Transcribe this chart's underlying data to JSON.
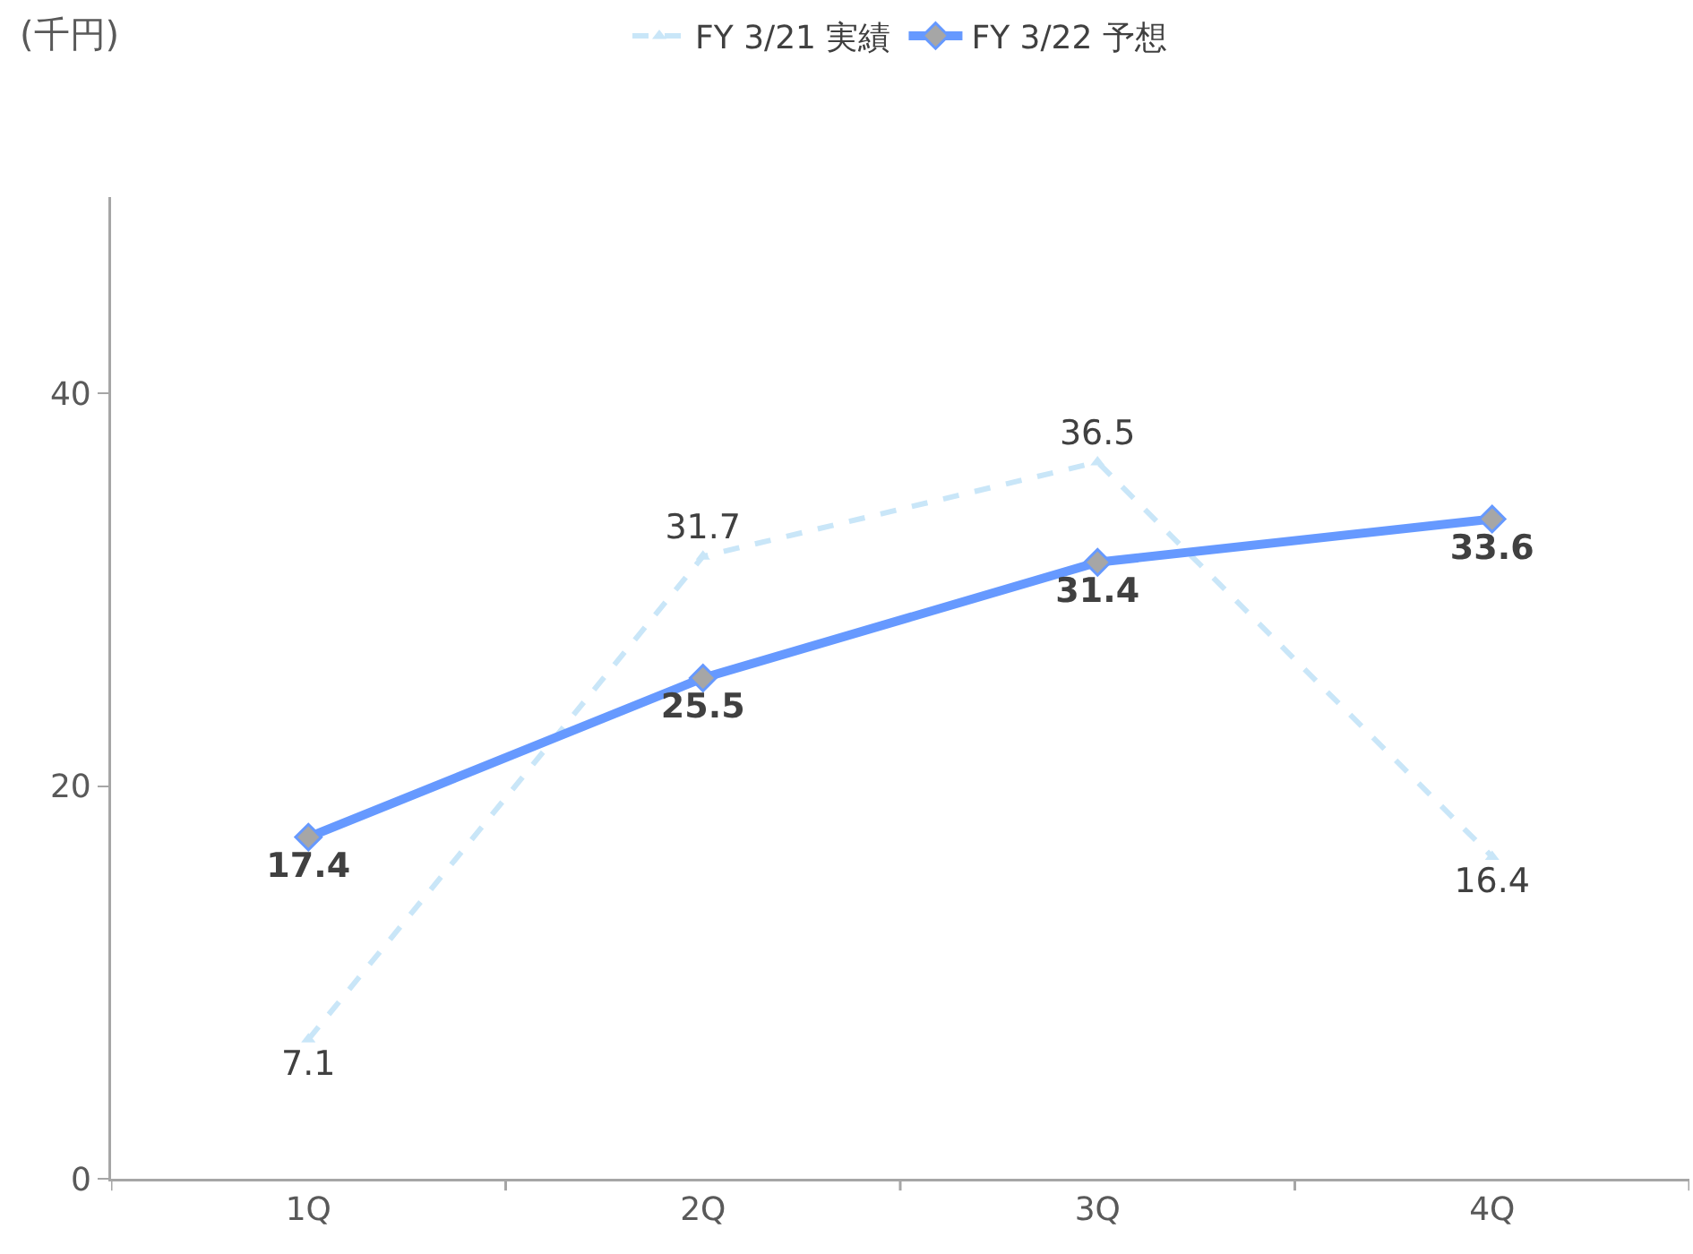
{
  "chart_data": {
    "type": "line",
    "ylabel": "(千円)",
    "categories": [
      "1Q",
      "2Q",
      "3Q",
      "4Q"
    ],
    "series": [
      {
        "name": "FY 3/21 実績",
        "color": "#c9e6f8",
        "values": [
          7.1,
          31.7,
          36.5,
          16.4
        ],
        "marker": "triangle",
        "line_style": "dashed"
      },
      {
        "name": "FY 3/22 予想",
        "color": "#6699ff",
        "values": [
          17.4,
          25.5,
          31.4,
          33.6
        ],
        "marker": "diamond",
        "line_style": "solid"
      }
    ],
    "ylim": [
      0,
      50
    ],
    "yticks": [
      0,
      20,
      40
    ],
    "grid": false,
    "legend": "top",
    "data_labels": true
  }
}
